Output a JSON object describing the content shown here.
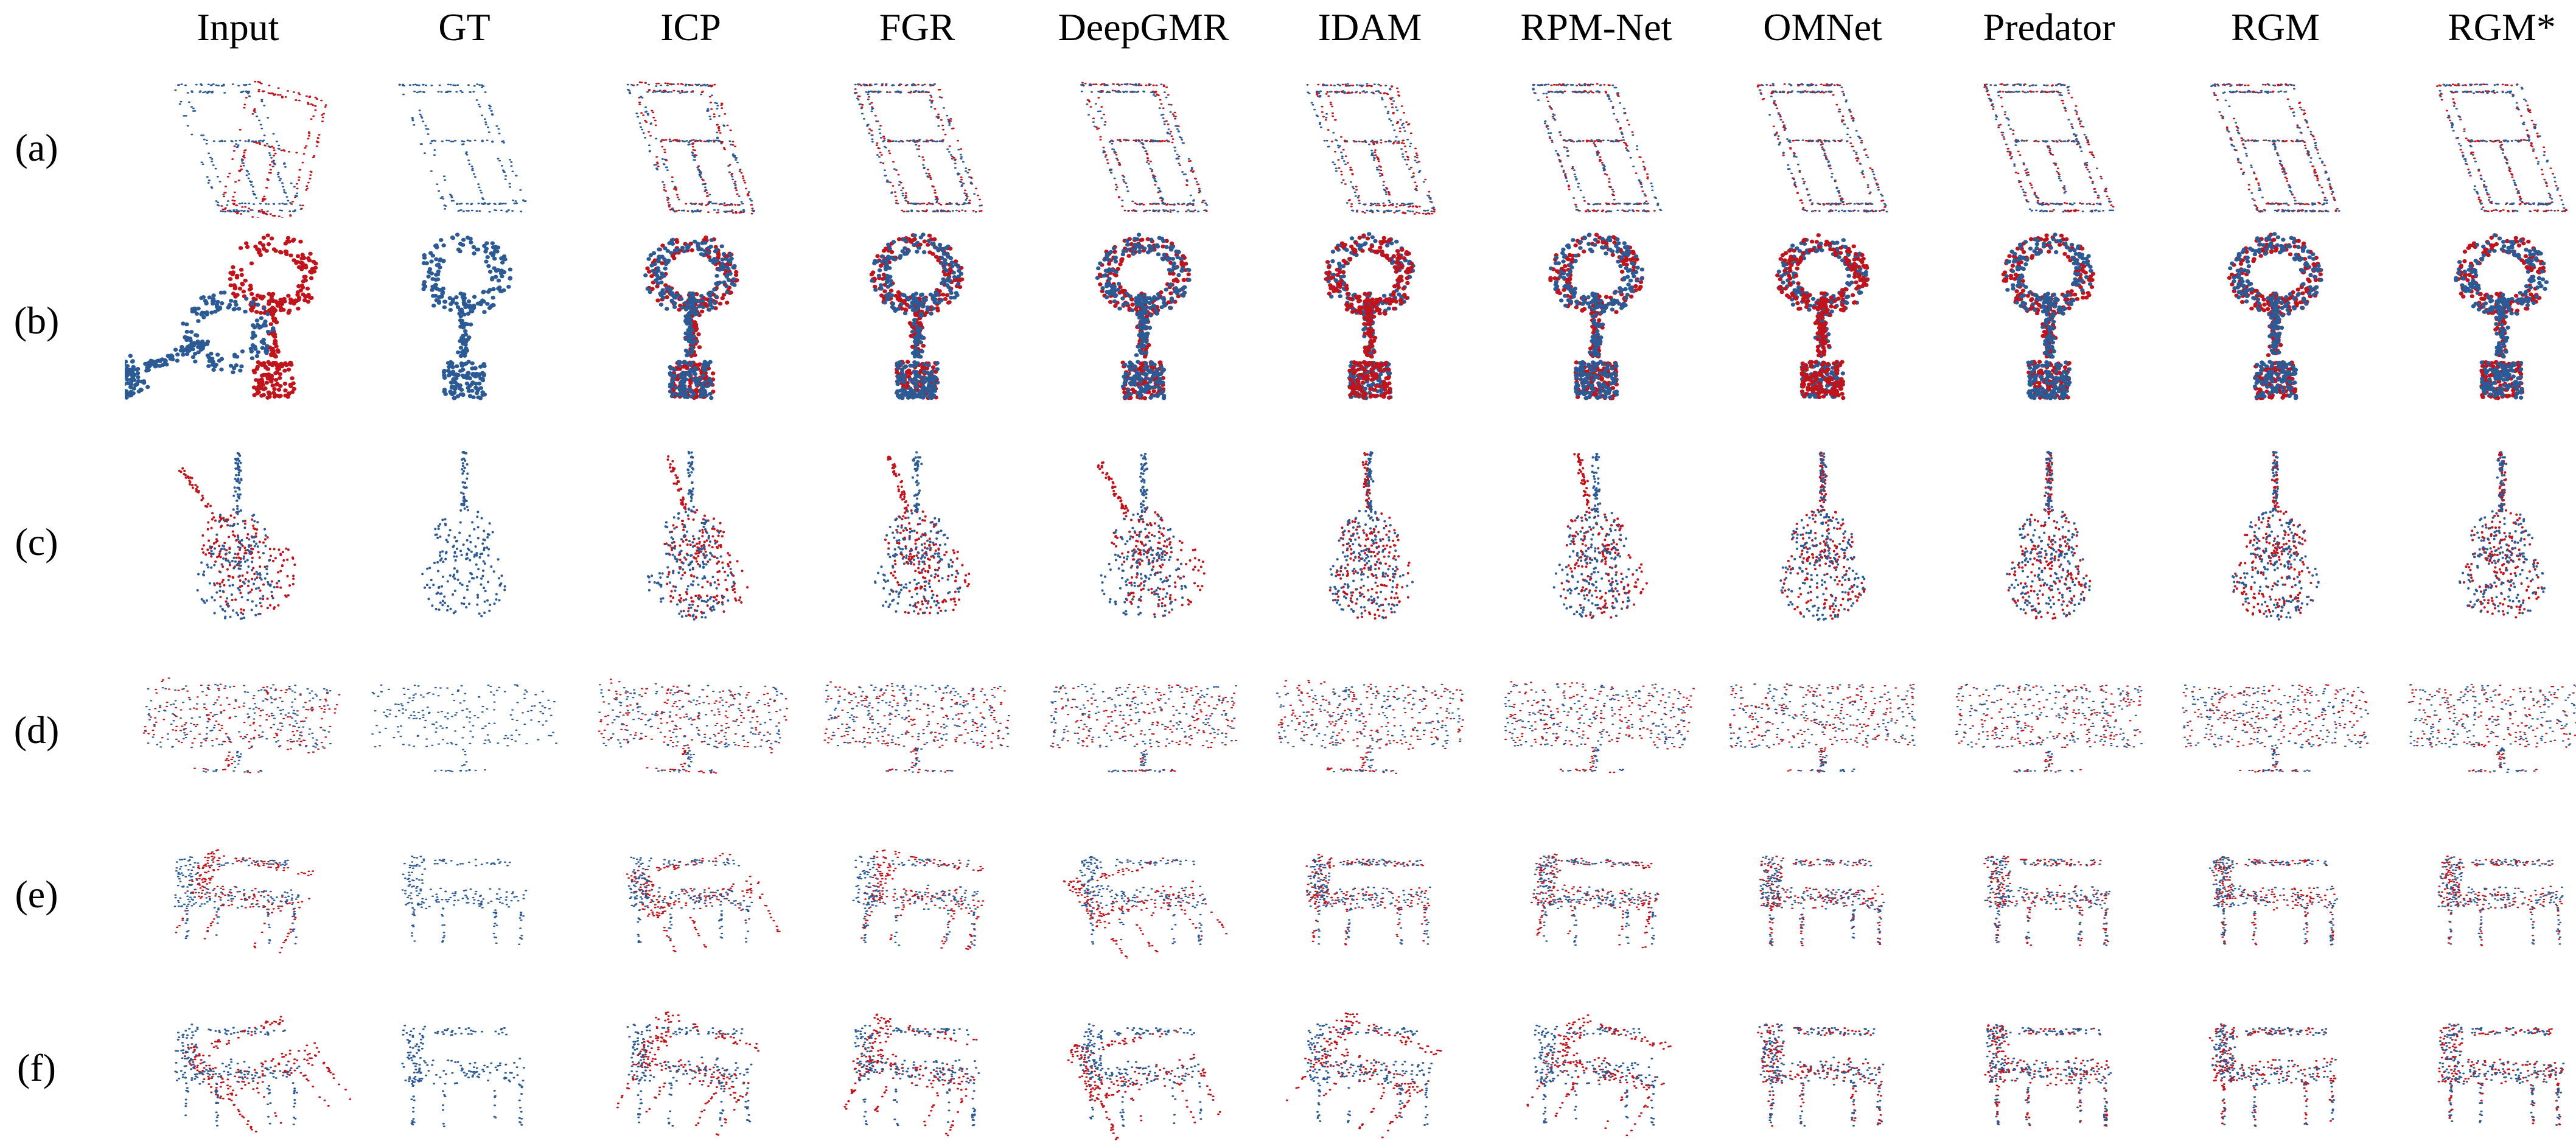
{
  "columns": [
    "Input",
    "GT",
    "ICP",
    "FGR",
    "DeepGMR",
    "IDAM",
    "RPM-Net",
    "OMNet",
    "Predator",
    "RGM",
    "RGM*"
  ],
  "rows": [
    "(a)",
    "(b)",
    "(c)",
    "(d)",
    "(e)",
    "(f)"
  ],
  "colors": {
    "source": "#c0141c",
    "target": "#2b5a94"
  }
}
